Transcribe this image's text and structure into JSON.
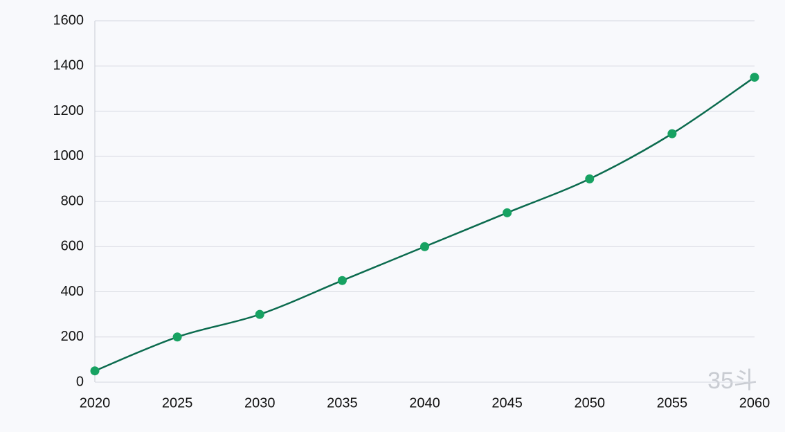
{
  "chart_data": {
    "type": "line",
    "x": [
      2020,
      2025,
      2030,
      2035,
      2040,
      2045,
      2050,
      2055,
      2060
    ],
    "series": [
      {
        "color": "#0b6b4e",
        "marker_color": "#17a262",
        "values": [
          50,
          200,
          300,
          450,
          600,
          750,
          900,
          1100,
          1350
        ]
      }
    ],
    "xlim": [
      2020,
      2060
    ],
    "xticks": [
      2020,
      2025,
      2030,
      2035,
      2040,
      2045,
      2050,
      2055,
      2060
    ],
    "ylim": [
      0,
      1600
    ],
    "yticks": [
      0,
      200,
      400,
      600,
      800,
      1000,
      1200,
      1400,
      1600
    ],
    "grid": true,
    "watermark": "35斗"
  }
}
